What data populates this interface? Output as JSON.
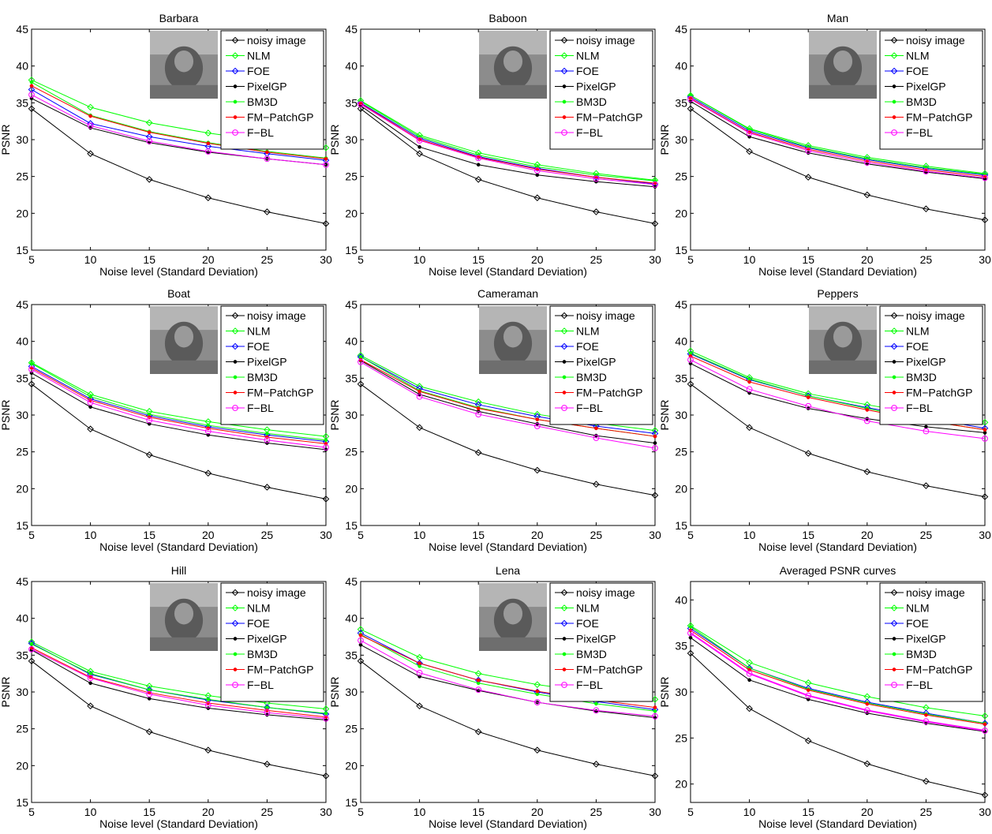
{
  "figure": {
    "legend_placement": "top-right"
  },
  "series_styles": [
    {
      "name": "noisy image",
      "color": "#000000",
      "marker": "diamond"
    },
    {
      "name": "NLM",
      "color": "#00ff00",
      "marker": "diamond"
    },
    {
      "name": "FOE",
      "color": "#0000ff",
      "marker": "diamond"
    },
    {
      "name": "PixelGP",
      "color": "#000000",
      "marker": "dot"
    },
    {
      "name": "BM3D",
      "color": "#00ff00",
      "marker": "dot"
    },
    {
      "name": "FM−PatchGP",
      "color": "#ff0000",
      "marker": "dot"
    },
    {
      "name": "F−BL",
      "color": "#ff00ff",
      "marker": "circle"
    }
  ],
  "chart_data": [
    {
      "type": "line",
      "title": "Barbara",
      "image_icon": "barbara-photo",
      "xlabel": "Noise level (Standard Deviation)",
      "ylabel": "PSNR",
      "x": [
        5,
        10,
        15,
        20,
        25,
        30
      ],
      "xlim": [
        5,
        30
      ],
      "ylim": [
        15,
        45
      ],
      "yticks": [
        15,
        20,
        25,
        30,
        35,
        40,
        45
      ],
      "grid": false,
      "series": [
        {
          "name": "noisy image",
          "values": [
            34.2,
            28.1,
            24.6,
            22.1,
            20.2,
            18.6
          ]
        },
        {
          "name": "NLM",
          "values": [
            38.1,
            34.4,
            32.3,
            30.9,
            29.8,
            28.9
          ]
        },
        {
          "name": "FOE",
          "values": [
            36.8,
            32.2,
            30.4,
            29.1,
            28.1,
            27.2
          ]
        },
        {
          "name": "PixelGP",
          "values": [
            35.6,
            31.6,
            29.6,
            28.3,
            27.4,
            26.6
          ]
        },
        {
          "name": "BM3D",
          "values": [
            37.8,
            33.3,
            31.1,
            29.6,
            28.4,
            27.5
          ]
        },
        {
          "name": "FM−PatchGP",
          "values": [
            37.3,
            33.2,
            31.0,
            29.5,
            28.3,
            27.4
          ]
        },
        {
          "name": "F−BL",
          "values": [
            36.1,
            31.9,
            29.8,
            28.4,
            27.4,
            26.6
          ]
        }
      ]
    },
    {
      "type": "line",
      "title": "Baboon",
      "image_icon": "baboon-photo",
      "xlabel": "Noise level (Standard Deviation)",
      "ylabel": "PSNR",
      "x": [
        5,
        10,
        15,
        20,
        25,
        30
      ],
      "xlim": [
        5,
        30
      ],
      "ylim": [
        15,
        45
      ],
      "yticks": [
        15,
        20,
        25,
        30,
        35,
        40,
        45
      ],
      "grid": false,
      "series": [
        {
          "name": "noisy image",
          "values": [
            34.2,
            28.1,
            24.6,
            22.1,
            20.2,
            18.6
          ]
        },
        {
          "name": "NLM",
          "values": [
            35.3,
            30.6,
            28.2,
            26.6,
            25.4,
            24.5
          ]
        },
        {
          "name": "FOE",
          "values": [
            35.0,
            30.2,
            27.7,
            26.1,
            24.9,
            24.0
          ]
        },
        {
          "name": "PixelGP",
          "values": [
            34.6,
            29.0,
            26.6,
            25.2,
            24.3,
            23.6
          ]
        },
        {
          "name": "BM3D",
          "values": [
            35.2,
            30.4,
            27.9,
            26.3,
            25.2,
            24.4
          ]
        },
        {
          "name": "FM−PatchGP",
          "values": [
            34.9,
            30.0,
            27.6,
            26.0,
            24.9,
            24.1
          ]
        },
        {
          "name": "F−BL",
          "values": [
            34.8,
            29.9,
            27.5,
            25.8,
            24.7,
            23.9
          ]
        }
      ]
    },
    {
      "type": "line",
      "title": "Man",
      "image_icon": "man-photo",
      "xlabel": "Noise level (Standard Deviation)",
      "ylabel": "PSNR",
      "x": [
        5,
        10,
        15,
        20,
        25,
        30
      ],
      "xlim": [
        5,
        30
      ],
      "ylim": [
        15,
        45
      ],
      "yticks": [
        15,
        20,
        25,
        30,
        35,
        40,
        45
      ],
      "grid": false,
      "series": [
        {
          "name": "noisy image",
          "values": [
            34.2,
            28.4,
            24.9,
            22.5,
            20.6,
            19.1
          ]
        },
        {
          "name": "NLM",
          "values": [
            36.0,
            31.5,
            29.2,
            27.6,
            26.4,
            25.4
          ]
        },
        {
          "name": "FOE",
          "values": [
            35.8,
            31.2,
            28.9,
            27.3,
            26.1,
            25.2
          ]
        },
        {
          "name": "PixelGP",
          "values": [
            35.2,
            30.4,
            28.2,
            26.7,
            25.6,
            24.7
          ]
        },
        {
          "name": "BM3D",
          "values": [
            36.0,
            31.4,
            29.0,
            27.4,
            26.2,
            25.3
          ]
        },
        {
          "name": "FM−PatchGP",
          "values": [
            35.6,
            31.0,
            28.7,
            27.1,
            25.9,
            25.0
          ]
        },
        {
          "name": "F−BL",
          "values": [
            35.5,
            30.9,
            28.5,
            26.9,
            25.7,
            24.8
          ]
        }
      ]
    },
    {
      "type": "line",
      "title": "Boat",
      "image_icon": "boat-photo",
      "xlabel": "Noise level (Standard Deviation)",
      "ylabel": "PSNR",
      "x": [
        5,
        10,
        15,
        20,
        25,
        30
      ],
      "xlim": [
        5,
        30
      ],
      "ylim": [
        15,
        45
      ],
      "yticks": [
        15,
        20,
        25,
        30,
        35,
        40,
        45
      ],
      "grid": false,
      "series": [
        {
          "name": "noisy image",
          "values": [
            34.2,
            28.1,
            24.6,
            22.1,
            20.2,
            18.6
          ]
        },
        {
          "name": "NLM",
          "values": [
            37.1,
            32.8,
            30.5,
            29.1,
            28.0,
            27.1
          ]
        },
        {
          "name": "FOE",
          "values": [
            36.6,
            32.2,
            29.9,
            28.4,
            27.3,
            26.4
          ]
        },
        {
          "name": "PixelGP",
          "values": [
            35.7,
            31.1,
            28.8,
            27.3,
            26.2,
            25.3
          ]
        },
        {
          "name": "BM3D",
          "values": [
            37.0,
            32.5,
            30.1,
            28.6,
            27.5,
            26.6
          ]
        },
        {
          "name": "FM−PatchGP",
          "values": [
            36.4,
            32.0,
            29.7,
            28.2,
            27.0,
            26.1
          ]
        },
        {
          "name": "F−BL",
          "values": [
            36.2,
            31.7,
            29.3,
            27.8,
            26.6,
            25.6
          ]
        }
      ]
    },
    {
      "type": "line",
      "title": "Cameraman",
      "image_icon": "cameraman-photo",
      "xlabel": "Noise level (Standard Deviation)",
      "ylabel": "PSNR",
      "x": [
        5,
        10,
        15,
        20,
        25,
        30
      ],
      "xlim": [
        5,
        30
      ],
      "ylim": [
        15,
        45
      ],
      "yticks": [
        15,
        20,
        25,
        30,
        35,
        40,
        45
      ],
      "grid": false,
      "series": [
        {
          "name": "noisy image",
          "values": [
            34.2,
            28.3,
            24.9,
            22.5,
            20.6,
            19.1
          ]
        },
        {
          "name": "NLM",
          "values": [
            38.1,
            33.9,
            31.8,
            30.1,
            28.9,
            27.9
          ]
        },
        {
          "name": "FOE",
          "values": [
            37.9,
            33.6,
            31.4,
            29.8,
            28.5,
            27.5
          ]
        },
        {
          "name": "PixelGP",
          "values": [
            37.4,
            32.8,
            30.5,
            28.8,
            27.2,
            26.2
          ]
        },
        {
          "name": "BM3D",
          "values": [
            37.9,
            33.3,
            31.0,
            29.4,
            28.2,
            27.1
          ]
        },
        {
          "name": "FM−PatchGP",
          "values": [
            37.5,
            33.2,
            30.9,
            29.4,
            28.2,
            27.1
          ]
        },
        {
          "name": "F−BL",
          "values": [
            37.2,
            32.5,
            30.1,
            28.5,
            26.9,
            25.5
          ]
        }
      ]
    },
    {
      "type": "line",
      "title": "Peppers",
      "image_icon": "peppers-photo",
      "xlabel": "Noise level (Standard Deviation)",
      "ylabel": "PSNR",
      "x": [
        5,
        10,
        15,
        20,
        25,
        30
      ],
      "xlim": [
        5,
        30
      ],
      "ylim": [
        15,
        45
      ],
      "yticks": [
        15,
        20,
        25,
        30,
        35,
        40,
        45
      ],
      "grid": false,
      "series": [
        {
          "name": "noisy image",
          "values": [
            34.2,
            28.3,
            24.8,
            22.3,
            20.4,
            18.9
          ]
        },
        {
          "name": "NLM",
          "values": [
            38.7,
            35.1,
            32.9,
            31.4,
            30.0,
            29.0
          ]
        },
        {
          "name": "FOE",
          "values": [
            38.3,
            34.8,
            32.6,
            31.0,
            29.6,
            28.2
          ]
        },
        {
          "name": "PixelGP",
          "values": [
            37.0,
            33.0,
            30.9,
            29.5,
            28.4,
            27.6
          ]
        },
        {
          "name": "BM3D",
          "values": [
            38.4,
            34.9,
            32.6,
            30.9,
            29.2,
            28.0
          ]
        },
        {
          "name": "FM−PatchGP",
          "values": [
            38.0,
            34.5,
            32.4,
            30.7,
            29.2,
            28.0
          ]
        },
        {
          "name": "F−BL",
          "values": [
            37.5,
            33.5,
            31.2,
            29.2,
            27.8,
            26.8
          ]
        }
      ]
    },
    {
      "type": "line",
      "title": "Hill",
      "image_icon": "hill-photo",
      "xlabel": "Noise level (Standard Deviation)",
      "ylabel": "PSNR",
      "x": [
        5,
        10,
        15,
        20,
        25,
        30
      ],
      "xlim": [
        5,
        30
      ],
      "ylim": [
        15,
        45
      ],
      "yticks": [
        15,
        20,
        25,
        30,
        35,
        40,
        45
      ],
      "grid": false,
      "series": [
        {
          "name": "noisy image",
          "values": [
            34.2,
            28.1,
            24.6,
            22.1,
            20.2,
            18.6
          ]
        },
        {
          "name": "NLM",
          "values": [
            36.8,
            32.8,
            30.8,
            29.5,
            28.5,
            27.7
          ]
        },
        {
          "name": "FOE",
          "values": [
            36.6,
            32.4,
            30.3,
            28.9,
            27.9,
            27.0
          ]
        },
        {
          "name": "PixelGP",
          "values": [
            35.7,
            31.2,
            29.1,
            27.8,
            26.9,
            26.2
          ]
        },
        {
          "name": "BM3D",
          "values": [
            36.5,
            32.5,
            30.3,
            29.0,
            27.9,
            27.1
          ]
        },
        {
          "name": "FM−PatchGP",
          "values": [
            36.0,
            32.0,
            29.9,
            28.5,
            27.5,
            26.6
          ]
        },
        {
          "name": "F−BL",
          "values": [
            35.8,
            31.9,
            29.7,
            28.2,
            27.2,
            26.4
          ]
        }
      ]
    },
    {
      "type": "line",
      "title": "Lena",
      "image_icon": "lena-photo",
      "xlabel": "Noise level (Standard Deviation)",
      "ylabel": "PSNR",
      "x": [
        5,
        10,
        15,
        20,
        25,
        30
      ],
      "xlim": [
        5,
        30
      ],
      "ylim": [
        15,
        45
      ],
      "yticks": [
        15,
        20,
        25,
        30,
        35,
        40,
        45
      ],
      "grid": false,
      "series": [
        {
          "name": "noisy image",
          "values": [
            34.2,
            28.1,
            24.6,
            22.1,
            20.2,
            18.6
          ]
        },
        {
          "name": "NLM",
          "values": [
            38.5,
            34.7,
            32.5,
            31.0,
            29.9,
            29.0
          ]
        },
        {
          "name": "FOE",
          "values": [
            38.0,
            33.9,
            31.6,
            30.0,
            28.7,
            27.6
          ]
        },
        {
          "name": "PixelGP",
          "values": [
            36.4,
            32.1,
            30.2,
            28.6,
            27.4,
            26.5
          ]
        },
        {
          "name": "BM3D",
          "values": [
            37.8,
            33.5,
            31.2,
            29.7,
            28.4,
            27.4
          ]
        },
        {
          "name": "FM−PatchGP",
          "values": [
            37.7,
            33.9,
            31.6,
            30.1,
            28.9,
            27.9
          ]
        },
        {
          "name": "F−BL",
          "values": [
            37.0,
            32.6,
            30.3,
            28.6,
            27.5,
            26.7
          ]
        }
      ]
    },
    {
      "type": "line",
      "title": "Averaged PSNR curves",
      "xlabel": "Noise level (Standard Deviation)",
      "ylabel": "PSNR",
      "x": [
        5,
        10,
        15,
        20,
        25,
        30
      ],
      "xlim": [
        5,
        30
      ],
      "ylim": [
        18,
        42
      ],
      "yticks": [
        20,
        25,
        30,
        35,
        40
      ],
      "grid": false,
      "series": [
        {
          "name": "noisy image",
          "values": [
            34.2,
            28.2,
            24.7,
            22.2,
            20.3,
            18.8
          ]
        },
        {
          "name": "NLM",
          "values": [
            37.2,
            33.2,
            31.0,
            29.5,
            28.3,
            27.4
          ]
        },
        {
          "name": "FOE",
          "values": [
            36.9,
            32.6,
            30.4,
            28.9,
            27.7,
            26.6
          ]
        },
        {
          "name": "PixelGP",
          "values": [
            35.9,
            31.3,
            29.2,
            27.7,
            26.6,
            25.7
          ]
        },
        {
          "name": "BM3D",
          "values": [
            37.1,
            32.6,
            30.3,
            28.8,
            27.6,
            26.6
          ]
        },
        {
          "name": "FM−PatchGP",
          "values": [
            36.7,
            32.4,
            30.2,
            28.7,
            27.5,
            26.5
          ]
        },
        {
          "name": "F−BL",
          "values": [
            36.4,
            32.0,
            29.6,
            28.0,
            26.8,
            25.8
          ]
        }
      ]
    }
  ]
}
